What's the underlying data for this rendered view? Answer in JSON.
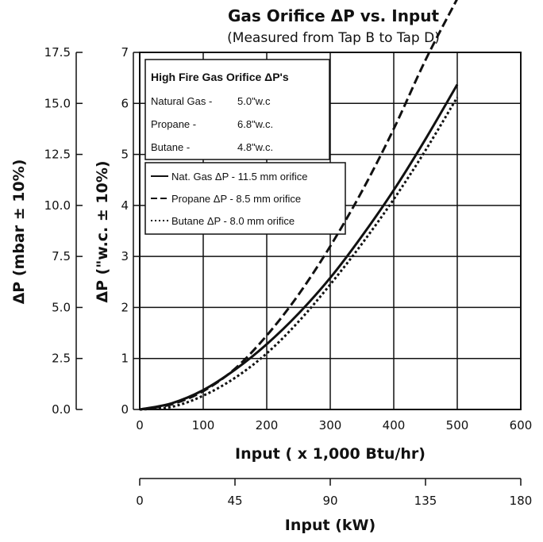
{
  "chart_data": {
    "type": "line",
    "title": "Gas Orifice ΔP vs. Input",
    "subtitle": "(Measured from Tap B to Tap D)",
    "xlabel": "Input  ( x 1,000 Btu/hr)",
    "xlim": [
      0,
      600
    ],
    "xticks": [
      "0",
      "100",
      "200",
      "300",
      "400",
      "500",
      "600"
    ],
    "ylabel": "ΔP (\"w.c. ± 10%)",
    "ylim": [
      0,
      7
    ],
    "yticks": [
      "0",
      "1",
      "2",
      "3",
      "4",
      "5",
      "6",
      "7"
    ],
    "ylabel2": "ΔP (mbar ± 10%)",
    "ylim2": [
      0,
      17.5
    ],
    "yticks2": [
      "0.0",
      "2.5",
      "5.0",
      "7.5",
      "10.0",
      "12.5",
      "15.0",
      "17.5"
    ],
    "xlabel2": "Input  (kW)",
    "xlim2": [
      0,
      180
    ],
    "xticks2": [
      "0",
      "45",
      "90",
      "135",
      "180"
    ],
    "grid": true,
    "series": [
      {
        "name": "Nat. Gas ΔP - 11.5 mm orifice",
        "style": "solid",
        "x": [
          0,
          50,
          100,
          150,
          200,
          250,
          300,
          350,
          400,
          450,
          500
        ],
        "values": [
          0,
          0.12,
          0.38,
          0.78,
          1.28,
          1.88,
          2.58,
          3.4,
          4.3,
          5.3,
          6.37
        ]
      },
      {
        "name": "Propane  ΔP - 8.5 mm orifice",
        "style": "dashed",
        "x": [
          0,
          50,
          100,
          150,
          200,
          250,
          300,
          350,
          400,
          450,
          500
        ],
        "values": [
          0,
          0.1,
          0.36,
          0.8,
          1.45,
          2.25,
          3.2,
          4.28,
          5.5,
          6.85,
          8.05
        ]
      },
      {
        "name": "Butane   ΔP - 8.0 mm orifice",
        "style": "dotted",
        "x": [
          0,
          50,
          100,
          150,
          200,
          250,
          300,
          350,
          400,
          450,
          500
        ],
        "values": [
          0,
          0.05,
          0.27,
          0.62,
          1.1,
          1.72,
          2.45,
          3.25,
          4.12,
          5.08,
          6.12
        ]
      }
    ],
    "legend": {
      "placement": "top-left"
    },
    "info_box": {
      "title": "High Fire Gas Orifice ΔP's",
      "rows": [
        {
          "label": "Natural Gas -",
          "value": "5.0\"w.c"
        },
        {
          "label": "Propane -",
          "value": "6.8\"w.c."
        },
        {
          "label": "Butane -",
          "value": "4.8\"w.c."
        }
      ]
    }
  }
}
